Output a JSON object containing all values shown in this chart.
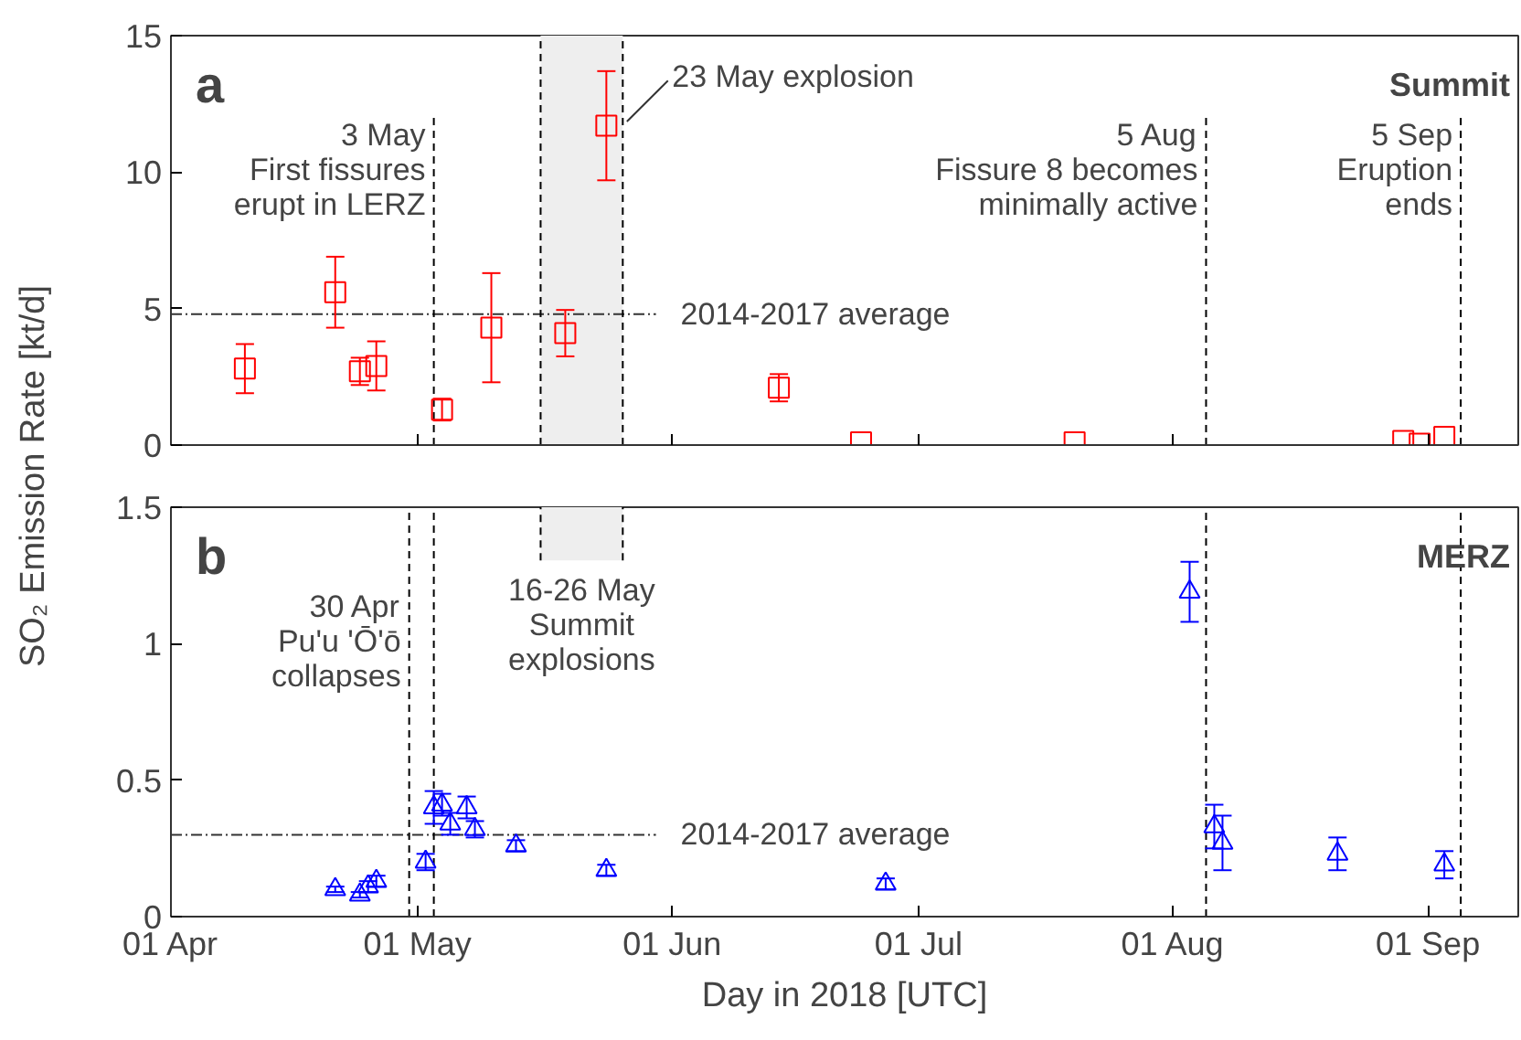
{
  "chart_data": [
    {
      "type": "scatter",
      "ylabel": "SO₂ Emission Rate [kt/d]",
      "xlim": [
        "2018-04-01",
        "2018-09-12"
      ],
      "xticks": [
        {
          "value": "2018-04-01",
          "label": null
        },
        {
          "value": "2018-05-01",
          "label": null
        },
        {
          "value": "2018-06-01",
          "label": null
        },
        {
          "value": "2018-07-01",
          "label": null
        },
        {
          "value": "2018-08-01",
          "label": null
        },
        {
          "value": "2018-09-01",
          "label": null
        }
      ],
      "ylim": [
        0,
        15
      ],
      "yticks": [
        0,
        5,
        10,
        15
      ],
      "tick_labels": "y",
      "grid": false,
      "marker": "square",
      "series": [
        {
          "color": "#ff0000",
          "x": [
            "2018-04-10",
            "2018-04-21",
            "2018-04-24",
            "2018-04-26",
            "2018-05-04",
            "2018-05-10",
            "2018-05-19",
            "2018-05-24",
            "2018-06-14",
            "2018-06-24",
            "2018-07-20",
            "2018-08-29",
            "2018-08-31",
            "2018-09-03"
          ],
          "values": [
            2.8,
            5.6,
            2.7,
            2.9,
            1.3,
            4.3,
            4.1,
            11.7,
            2.1,
            0.1,
            0.1,
            0.15,
            0.05,
            0.3
          ],
          "errors": [
            0.9,
            1.3,
            0.5,
            0.9,
            0.4,
            2.0,
            0.85,
            2.0,
            0.5,
            null,
            null,
            null,
            null,
            null
          ]
        }
      ],
      "ref_lines": [
        {
          "axis": "y",
          "value": 4.8,
          "label": "2014-2017 average",
          "line_style": "dashdot"
        },
        {
          "axis": "x",
          "value": "2018-05-03",
          "label": "3 May\nFirst fissures\nerupt in LERZ",
          "line_style": "dashed"
        },
        {
          "axis": "x",
          "value": "2018-05-16",
          "label": null,
          "line_style": "dashed"
        },
        {
          "axis": "x",
          "value": "2018-05-26",
          "label": null,
          "line_style": "dashed"
        },
        {
          "axis": "x",
          "value": "2018-08-05",
          "label": "5 Aug\nFissure 8 becomes\nminimally active",
          "line_style": "dashed"
        },
        {
          "axis": "x",
          "value": "2018-09-05",
          "label": "5 Sep\nEruption\nends",
          "line_style": "dashed"
        }
      ],
      "bands": [
        {
          "axis": "x",
          "from": "2018-05-16",
          "to": "2018-05-26",
          "color": "#eeeeee"
        }
      ],
      "annotations": [
        "a",
        "Summit",
        {
          "text": "23 May explosion",
          "x": "2018-05-24",
          "y": 11.7
        }
      ]
    },
    {
      "type": "scatter",
      "xlabel": "Day in 2018 [UTC]",
      "xlim": [
        "2018-04-01",
        "2018-09-12"
      ],
      "xticks": [
        {
          "value": "2018-04-01",
          "label": "01 Apr"
        },
        {
          "value": "2018-05-01",
          "label": "01 May"
        },
        {
          "value": "2018-06-01",
          "label": "01 Jun"
        },
        {
          "value": "2018-07-01",
          "label": "01 Jul"
        },
        {
          "value": "2018-08-01",
          "label": "01 Aug"
        },
        {
          "value": "2018-09-01",
          "label": "01 Sep"
        }
      ],
      "ylim": [
        0,
        1.5
      ],
      "yticks": [
        0,
        0.5,
        1,
        1.5
      ],
      "grid": false,
      "marker": "triangle",
      "series": [
        {
          "color": "#0000ff",
          "x": [
            "2018-04-21",
            "2018-04-24",
            "2018-04-25",
            "2018-04-26",
            "2018-05-02",
            "2018-05-03",
            "2018-05-04",
            "2018-05-05",
            "2018-05-07",
            "2018-05-08",
            "2018-05-13",
            "2018-05-24",
            "2018-06-27",
            "2018-08-03",
            "2018-08-06",
            "2018-08-07",
            "2018-08-21",
            "2018-09-03"
          ],
          "values": [
            0.1,
            0.08,
            0.11,
            0.13,
            0.2,
            0.4,
            0.41,
            0.34,
            0.4,
            0.32,
            0.26,
            0.17,
            0.12,
            1.19,
            0.33,
            0.27,
            0.23,
            0.19
          ],
          "errors": [
            0.01,
            0.01,
            0.02,
            0.02,
            0.03,
            0.06,
            0.04,
            0.04,
            0.04,
            0.03,
            0.02,
            0.02,
            0.02,
            0.11,
            0.08,
            0.1,
            0.06,
            0.05
          ]
        }
      ],
      "ref_lines": [
        {
          "axis": "y",
          "value": 0.3,
          "label": "2014-2017 average",
          "line_style": "dashdot"
        },
        {
          "axis": "x",
          "value": "2018-04-30",
          "label": "30 Apr\nPu'u 'Ō'ō\ncollapses",
          "line_style": "dashed"
        },
        {
          "axis": "x",
          "value": "2018-05-03",
          "label": null,
          "line_style": "dashed"
        },
        {
          "axis": "x",
          "value": "2018-05-16",
          "label": null,
          "line_style": "dashed"
        },
        {
          "axis": "x",
          "value": "2018-05-26",
          "label": null,
          "line_style": "dashed"
        },
        {
          "axis": "x",
          "value": "2018-08-05",
          "label": null,
          "line_style": "dashed"
        },
        {
          "axis": "x",
          "value": "2018-09-05",
          "label": null,
          "line_style": "dashed"
        }
      ],
      "bands": [
        {
          "axis": "x",
          "from": "2018-05-16",
          "to": "2018-05-26",
          "label": "16-26 May\nSummit\nexplosions",
          "color": "#eeeeee"
        }
      ],
      "annotations": [
        "b",
        "MERZ"
      ]
    }
  ]
}
